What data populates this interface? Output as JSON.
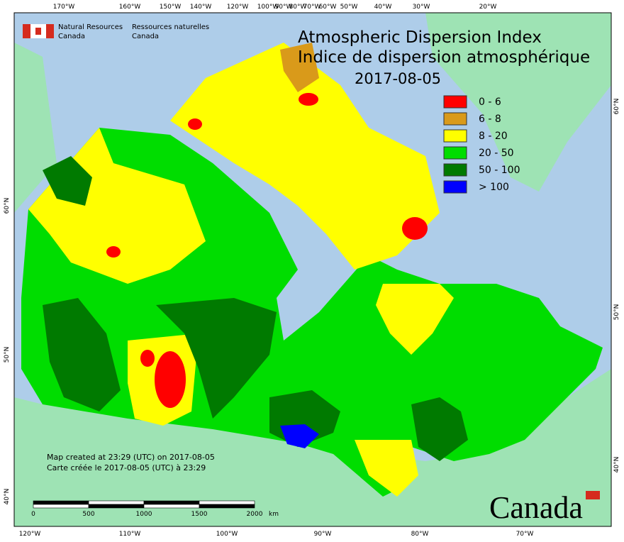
{
  "agency": {
    "en_line1": "Natural Resources",
    "en_line2": "Canada",
    "fr_line1": "Ressources naturelles",
    "fr_line2": "Canada"
  },
  "title": {
    "line1": "Atmospheric Dispersion Index",
    "line2": "Indice de dispersion atmosphérique",
    "date": "2017-08-05"
  },
  "legend": [
    {
      "label": "0 - 6",
      "color": "#ff0000"
    },
    {
      "label": "6 - 8",
      "color": "#d99a1a"
    },
    {
      "label": "8 - 20",
      "color": "#ffff00"
    },
    {
      "label": "20 - 50",
      "color": "#00dd00"
    },
    {
      "label": "50 - 100",
      "color": "#007a00"
    },
    {
      "label": "> 100",
      "color": "#0000ff"
    }
  ],
  "top_labels": [
    "170°W",
    "160°W",
    "150°W",
    "140°W",
    "120°W",
    "100°W",
    "90°W",
    "80°W",
    "70°W",
    "60°W",
    "50°W",
    "40°W",
    "30°W",
    "20°W"
  ],
  "bottom_labels": [
    "120°W",
    "110°W",
    "100°W",
    "90°W",
    "80°W",
    "70°W"
  ],
  "left_labels": [
    "60°N",
    "50°N",
    "40°N"
  ],
  "right_labels": [
    "60°N",
    "50°N",
    "40°N"
  ],
  "credits": [
    "Map created at 23:29 (UTC) on 2017-08-05",
    "Carte créée le 2017-08-05 (UTC) à 23:29"
  ],
  "scale": {
    "ticks": [
      "0",
      "500",
      "1000",
      "1500",
      "2000"
    ],
    "unit": "km"
  },
  "wordmark": "Canada"
}
